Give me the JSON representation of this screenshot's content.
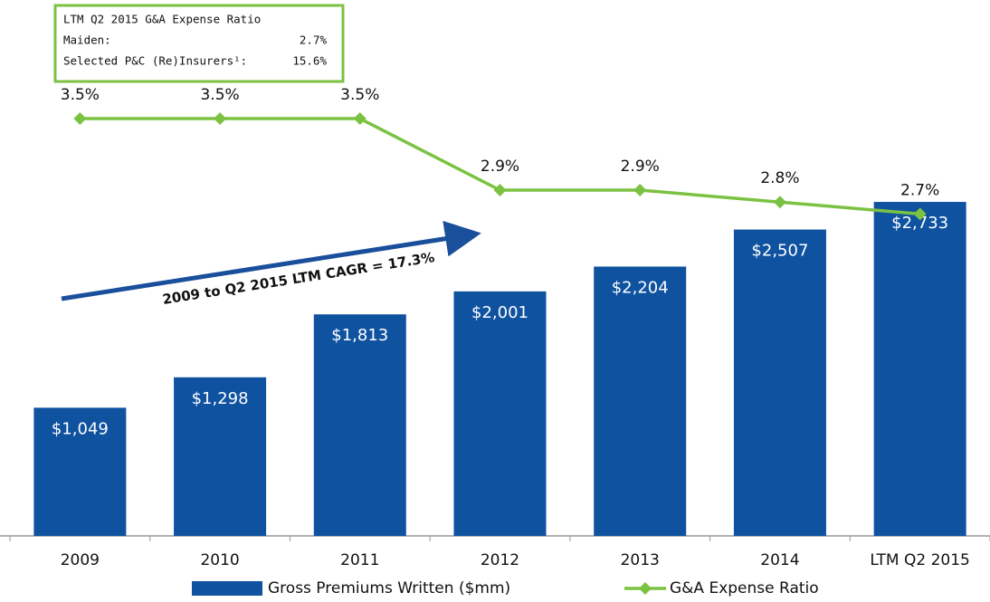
{
  "chart_data": {
    "type": "combo",
    "categories": [
      "2009",
      "2010",
      "2011",
      "2012",
      "2013",
      "2014",
      "LTM Q2 2015"
    ],
    "series": [
      {
        "name": "Gross Premiums Written ($mm)",
        "type": "bar",
        "color": "#0f52a0",
        "values": [
          1049,
          1298,
          1813,
          2001,
          2204,
          2507,
          2733
        ],
        "value_labels": [
          "$1,049",
          "$1,298",
          "$1,813",
          "$2,001",
          "$2,204",
          "$2,507",
          "$2,733"
        ]
      },
      {
        "name": "G&A Expense Ratio",
        "type": "line",
        "axis": "y2",
        "color": "#7cc242",
        "values": [
          3.5,
          3.5,
          3.5,
          2.9,
          2.9,
          2.8,
          2.7
        ],
        "value_labels": [
          "3.5%",
          "3.5%",
          "3.5%",
          "2.9%",
          "2.9%",
          "2.8%",
          "2.7%"
        ]
      }
    ],
    "ylim": [
      0,
      4000
    ],
    "y2lim": [
      0,
      4.1
    ],
    "legend": "bottom",
    "arrow_annotation": "2009 to Q2 2015 LTM CAGR = 17.3%",
    "box_annotation": {
      "title": "LTM Q2 2015 G&A Expense Ratio",
      "rows": [
        [
          "Maiden:",
          "2.7%"
        ],
        [
          "Selected P&C (Re)Insurers¹:",
          "15.6%"
        ]
      ]
    }
  }
}
